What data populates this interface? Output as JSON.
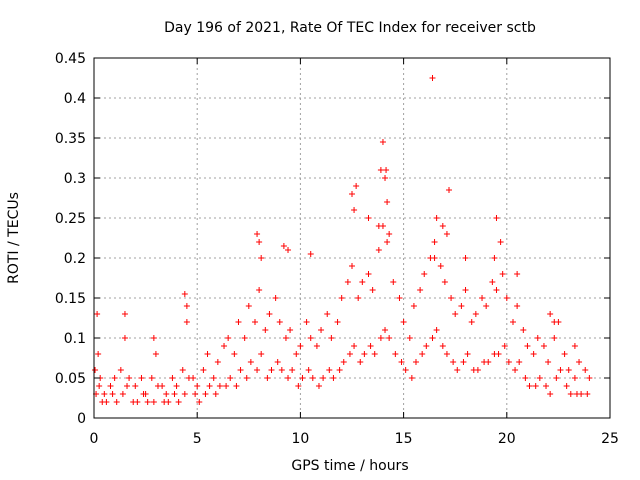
{
  "chart_data": {
    "type": "scatter",
    "title": "Day 196 of 2021, Rate Of TEC Index for receiver sctb",
    "xlabel": "GPS time / hours",
    "ylabel": "ROTI / TECUs",
    "xlim": [
      0,
      25
    ],
    "ylim": [
      0,
      0.45
    ],
    "xticks": [
      "0",
      "5",
      "10",
      "15",
      "20",
      "25"
    ],
    "yticks": [
      "0",
      "0.05",
      "0.1",
      "0.15",
      "0.2",
      "0.25",
      "0.3",
      "0.35",
      "0.4",
      "0.45"
    ],
    "grid": true,
    "marker": "+",
    "color": "#ff0000",
    "series": [
      {
        "x": [
          0.05,
          0.2,
          0.3,
          0.5,
          0.8,
          1.0,
          1.3,
          1.5,
          1.7,
          2.0,
          2.3,
          2.5,
          2.8,
          3.0,
          3.3,
          3.5,
          3.8,
          4.0,
          4.3,
          4.5,
          4.8,
          5.0,
          5.3,
          5.5,
          5.8,
          6.0,
          6.3,
          6.5,
          6.8,
          7.0,
          7.3,
          7.5,
          7.8,
          8.0,
          8.3,
          8.5,
          8.8,
          9.0,
          9.3,
          9.5,
          9.8,
          10.0,
          10.3,
          10.5,
          10.8,
          11.0,
          11.3,
          11.5,
          11.8,
          12.0,
          12.3,
          12.5,
          12.8,
          13.0,
          13.3,
          13.5,
          13.8,
          14.0,
          14.2,
          14.5,
          14.8,
          15.0,
          15.3,
          15.5,
          15.8,
          16.0,
          16.3,
          16.5,
          16.8,
          17.0,
          17.3,
          17.5,
          17.8,
          18.0,
          18.3,
          18.5,
          18.8,
          19.0,
          19.3,
          19.5,
          19.8,
          20.0,
          20.3,
          20.5,
          20.8,
          21.0,
          21.3,
          21.5,
          21.8,
          22.0,
          22.3,
          22.5,
          22.8,
          23.0,
          23.3,
          23.5,
          23.8,
          24.0,
          0.1,
          0.25,
          0.4,
          0.6,
          0.9,
          1.1,
          1.4,
          1.6,
          1.9,
          2.1,
          2.4,
          2.6,
          2.9,
          3.1,
          3.4,
          3.6,
          3.9,
          4.1,
          4.4,
          4.6,
          4.9,
          5.1,
          5.4,
          5.6,
          5.9,
          6.1,
          6.4,
          6.6,
          6.9,
          7.1,
          7.4,
          7.6,
          7.9,
          8.1,
          8.4,
          8.6,
          8.9,
          9.1,
          9.4,
          9.6,
          9.9,
          10.1,
          10.4,
          10.6,
          10.9,
          11.1,
          11.4,
          11.6,
          11.9,
          12.1,
          12.4,
          12.6,
          12.9,
          13.1,
          13.4,
          13.6,
          13.9,
          14.1,
          14.3,
          14.6,
          14.9,
          15.1,
          15.4,
          15.6,
          15.9,
          16.1,
          16.4,
          16.6,
          16.9,
          17.1,
          17.4,
          17.6,
          17.9,
          18.1,
          18.4,
          18.6,
          18.9,
          19.1,
          19.4,
          19.6,
          19.9,
          20.1,
          20.4,
          20.6,
          20.9,
          21.1,
          21.4,
          21.6,
          21.9,
          22.1,
          22.4,
          22.6,
          22.9,
          23.1,
          23.4,
          23.6,
          23.9,
          0.15,
          1.5,
          2.9,
          4.4,
          4.5,
          7.9,
          8.0,
          9.2,
          12.5,
          12.7,
          13.3,
          13.9,
          14.0,
          14.1,
          14.2,
          14.3,
          16.4,
          16.5,
          16.9,
          17.2,
          19.5,
          19.7,
          8.1,
          9.4,
          10.5,
          12.6,
          13.8,
          14.15,
          16.6,
          17.1,
          18.0,
          19.4,
          20.5,
          22.1,
          22.3,
          23.3
        ],
        "y": [
          0.06,
          0.08,
          0.05,
          0.03,
          0.04,
          0.05,
          0.06,
          0.1,
          0.05,
          0.04,
          0.05,
          0.03,
          0.05,
          0.08,
          0.04,
          0.03,
          0.05,
          0.04,
          0.06,
          0.12,
          0.05,
          0.04,
          0.06,
          0.08,
          0.05,
          0.07,
          0.09,
          0.1,
          0.08,
          0.12,
          0.1,
          0.14,
          0.12,
          0.16,
          0.11,
          0.13,
          0.15,
          0.12,
          0.1,
          0.11,
          0.08,
          0.09,
          0.12,
          0.1,
          0.09,
          0.11,
          0.13,
          0.1,
          0.12,
          0.15,
          0.17,
          0.19,
          0.15,
          0.17,
          0.18,
          0.16,
          0.21,
          0.24,
          0.22,
          0.17,
          0.15,
          0.12,
          0.1,
          0.14,
          0.16,
          0.18,
          0.2,
          0.22,
          0.19,
          0.17,
          0.15,
          0.13,
          0.14,
          0.16,
          0.12,
          0.13,
          0.15,
          0.14,
          0.17,
          0.16,
          0.18,
          0.15,
          0.12,
          0.14,
          0.11,
          0.09,
          0.08,
          0.1,
          0.09,
          0.07,
          0.1,
          0.12,
          0.08,
          0.06,
          0.05,
          0.07,
          0.06,
          0.05,
          0.03,
          0.04,
          0.02,
          0.02,
          0.03,
          0.02,
          0.03,
          0.04,
          0.02,
          0.02,
          0.03,
          0.02,
          0.02,
          0.04,
          0.02,
          0.02,
          0.03,
          0.02,
          0.03,
          0.05,
          0.03,
          0.02,
          0.03,
          0.04,
          0.03,
          0.04,
          0.04,
          0.05,
          0.04,
          0.06,
          0.05,
          0.07,
          0.06,
          0.08,
          0.05,
          0.06,
          0.07,
          0.06,
          0.05,
          0.06,
          0.04,
          0.05,
          0.06,
          0.05,
          0.04,
          0.05,
          0.06,
          0.05,
          0.06,
          0.07,
          0.08,
          0.09,
          0.07,
          0.08,
          0.09,
          0.08,
          0.1,
          0.11,
          0.1,
          0.08,
          0.07,
          0.06,
          0.05,
          0.07,
          0.08,
          0.09,
          0.1,
          0.11,
          0.09,
          0.08,
          0.07,
          0.06,
          0.07,
          0.08,
          0.06,
          0.06,
          0.07,
          0.07,
          0.08,
          0.08,
          0.09,
          0.07,
          0.06,
          0.07,
          0.05,
          0.04,
          0.04,
          0.05,
          0.04,
          0.03,
          0.05,
          0.06,
          0.04,
          0.03,
          0.03,
          0.03,
          0.03,
          0.13,
          0.13,
          0.1,
          0.155,
          0.14,
          0.23,
          0.22,
          0.215,
          0.28,
          0.29,
          0.25,
          0.31,
          0.345,
          0.3,
          0.27,
          0.23,
          0.425,
          0.2,
          0.24,
          0.285,
          0.25,
          0.22,
          0.2,
          0.21,
          0.205,
          0.26,
          0.24,
          0.31,
          0.25,
          0.23,
          0.2,
          0.2,
          0.18,
          0.13,
          0.12,
          0.09
        ]
      }
    ]
  }
}
